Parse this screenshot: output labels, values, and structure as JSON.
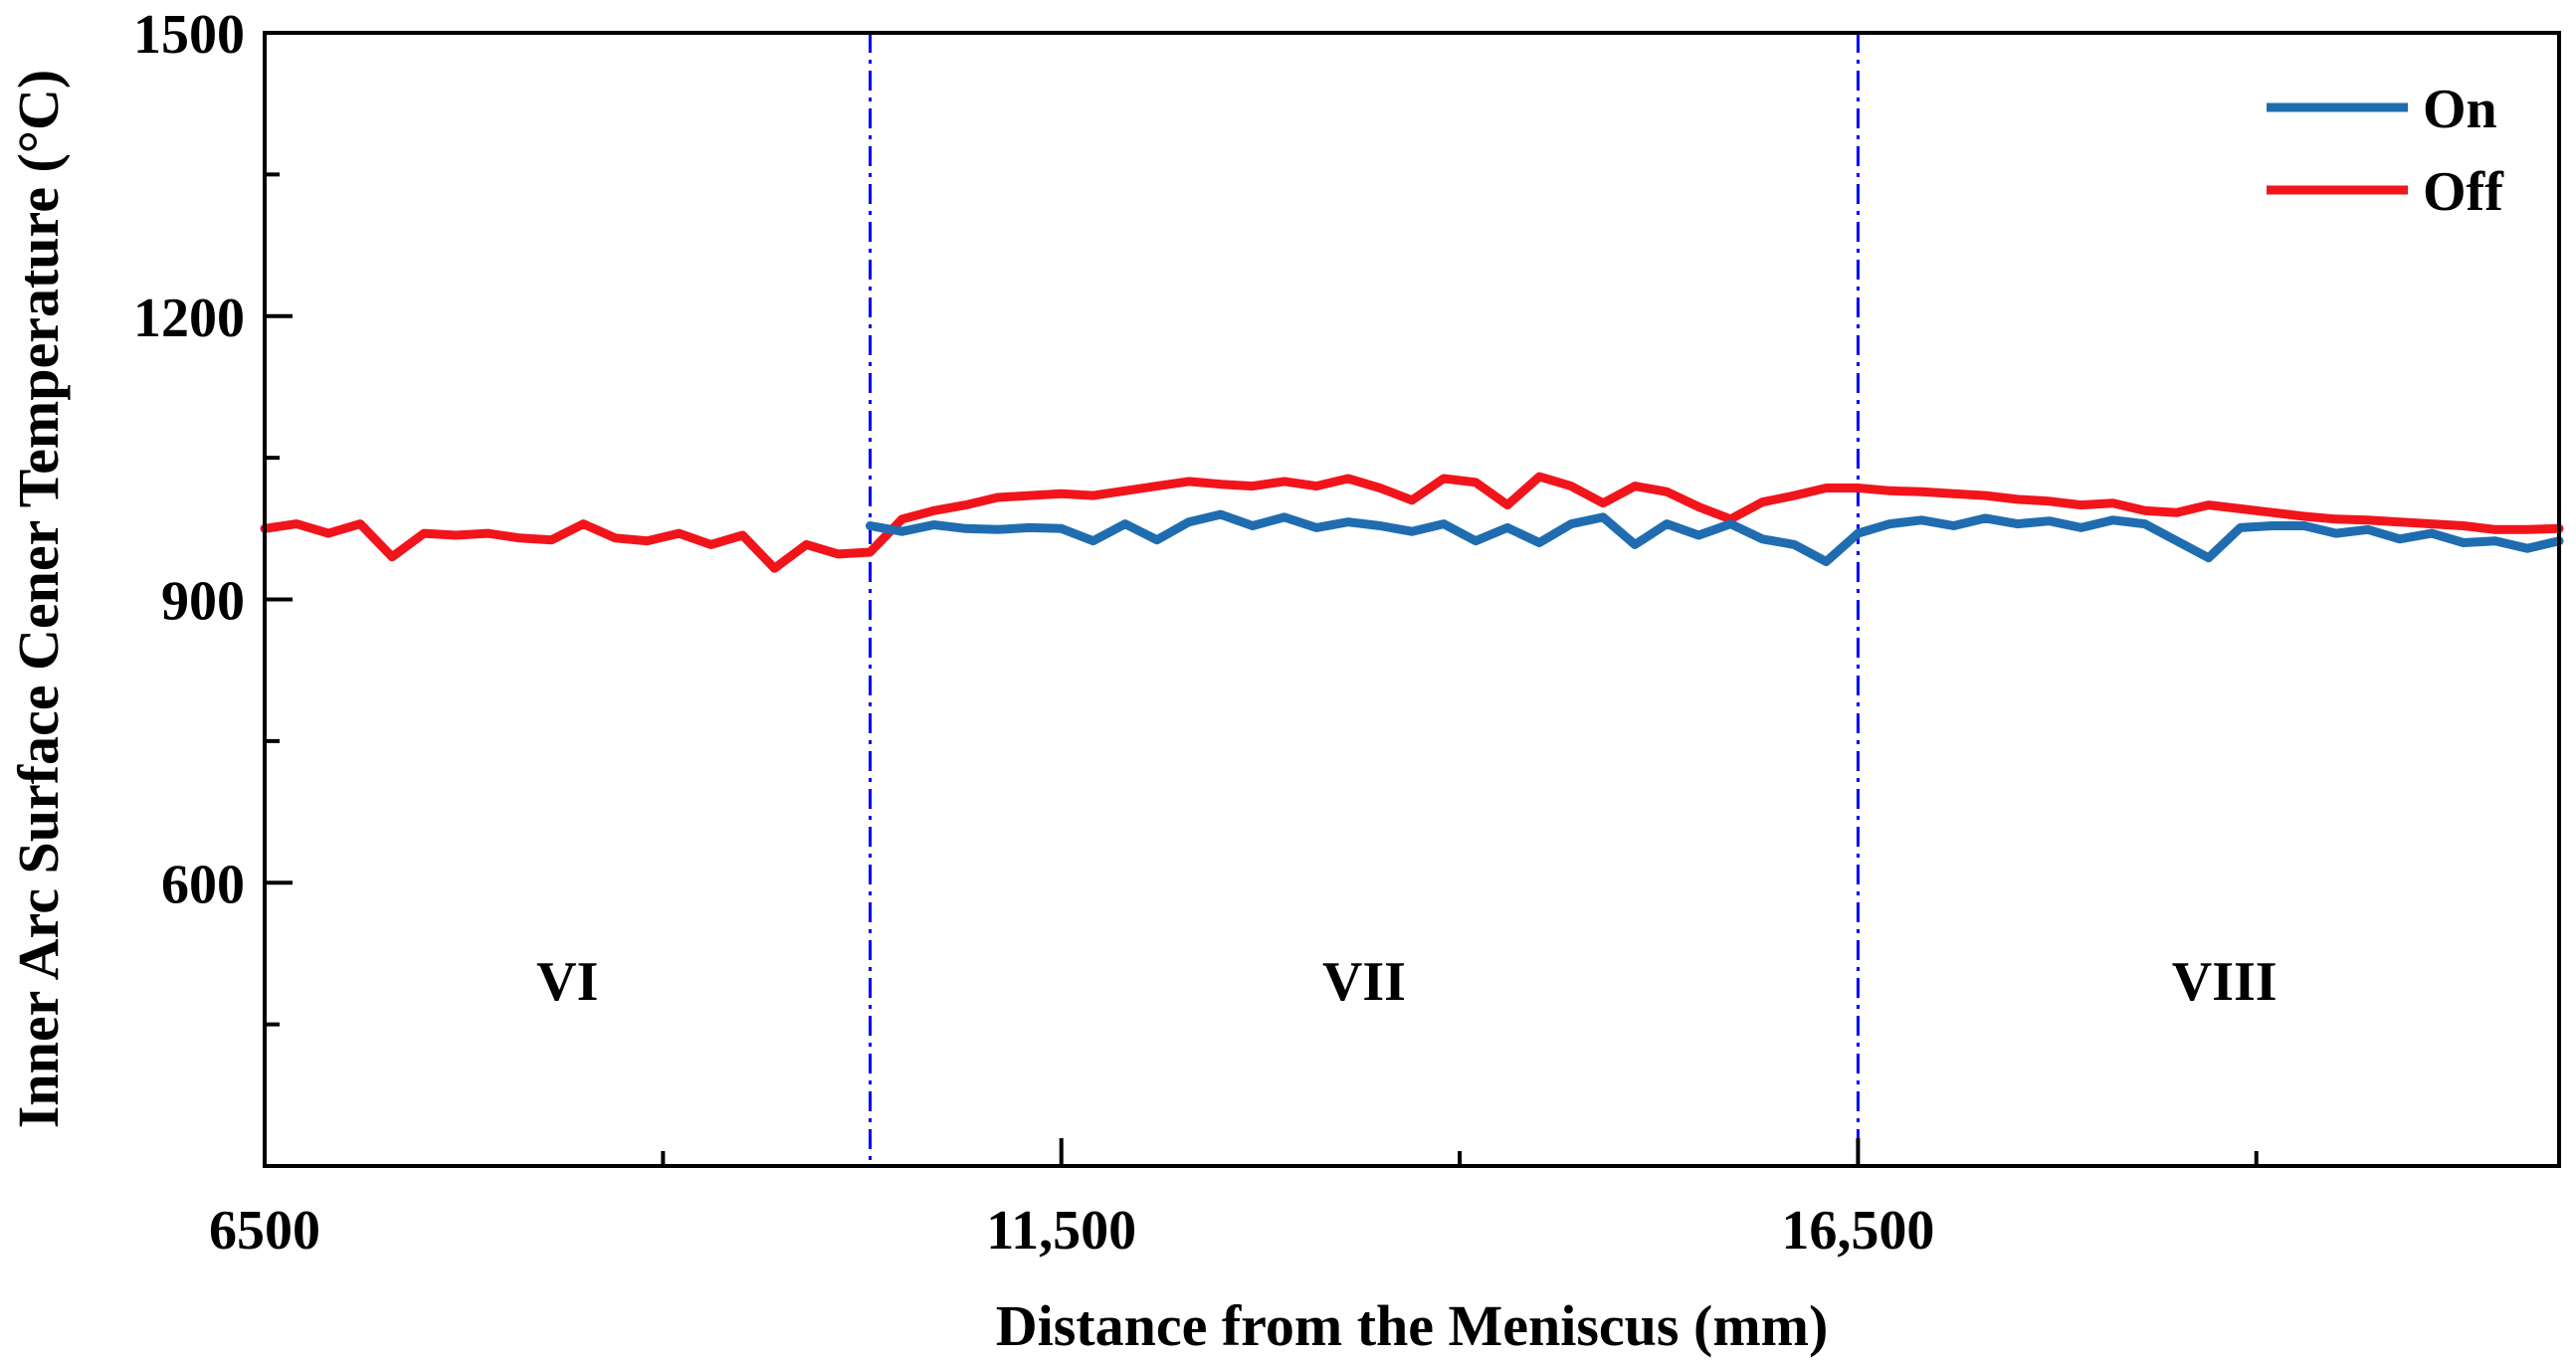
{
  "chart_data": {
    "type": "line",
    "title": "",
    "xlabel": "Distance from the Meniscus (mm)",
    "ylabel": "Inner Arc Surface Cener Temperature (°C)",
    "xlim": [
      6500,
      20900
    ],
    "ylim": [
      300,
      1500
    ],
    "x_ticks": [
      6500,
      11500,
      16500
    ],
    "x_tick_labels": [
      "6500",
      "11,500",
      "16,500"
    ],
    "x_minor_ticks": [
      9000,
      14000,
      19000
    ],
    "y_ticks": [
      600,
      900,
      1200,
      1500
    ],
    "y_tick_labels": [
      "600",
      "900",
      "1200",
      "1500"
    ],
    "y_minor_ticks": [
      450,
      750,
      1050,
      1350
    ],
    "legend_position": "top-right",
    "zone_boundaries": [
      10300,
      16500
    ],
    "zones": [
      {
        "label": "VI",
        "x": 8400
      },
      {
        "label": "VII",
        "x": 13400
      },
      {
        "label": "VIII",
        "x": 18800
      }
    ],
    "series": [
      {
        "name": "On",
        "color": "#1f6db0",
        "x": [
          10300,
          10500,
          10700,
          10900,
          11100,
          11300,
          11500,
          11700,
          11900,
          12100,
          12300,
          12500,
          12700,
          12900,
          13100,
          13300,
          13500,
          13700,
          13900,
          14100,
          14300,
          14500,
          14700,
          14900,
          15100,
          15300,
          15500,
          15700,
          15900,
          16100,
          16300,
          16500,
          16700,
          16900,
          17100,
          17300,
          17500,
          17700,
          17900,
          18100,
          18300,
          18500,
          18700,
          18900,
          19100,
          19300,
          19500,
          19700,
          19900,
          20100,
          20300,
          20500,
          20700,
          20900
        ],
        "y": [
          978,
          972,
          979,
          975,
          974,
          976,
          975,
          962,
          980,
          963,
          982,
          990,
          978,
          987,
          976,
          982,
          978,
          972,
          980,
          962,
          976,
          960,
          980,
          987,
          958,
          980,
          968,
          980,
          964,
          958,
          940,
          970,
          980,
          984,
          978,
          986,
          980,
          983,
          976,
          984,
          980,
          962,
          944,
          976,
          978,
          978,
          970,
          974,
          964,
          970,
          960,
          962,
          954,
          962
        ]
      },
      {
        "name": "Off",
        "color": "#f2141b",
        "x": [
          6500,
          6700,
          6900,
          7100,
          7300,
          7500,
          7700,
          7900,
          8100,
          8300,
          8500,
          8700,
          8900,
          9100,
          9300,
          9500,
          9700,
          9900,
          10100,
          10300,
          10500,
          10700,
          10900,
          11100,
          11300,
          11500,
          11700,
          11900,
          12100,
          12300,
          12500,
          12700,
          12900,
          13100,
          13300,
          13500,
          13700,
          13900,
          14100,
          14300,
          14500,
          14700,
          14900,
          15100,
          15300,
          15500,
          15700,
          15900,
          16100,
          16300,
          16500,
          16700,
          16900,
          17100,
          17300,
          17500,
          17700,
          17900,
          18100,
          18300,
          18500,
          18700,
          18900,
          19100,
          19300,
          19500,
          19700,
          19900,
          20100,
          20300,
          20500,
          20700,
          20900
        ],
        "y": [
          975,
          980,
          970,
          980,
          945,
          970,
          968,
          970,
          965,
          963,
          980,
          965,
          962,
          970,
          958,
          968,
          933,
          958,
          948,
          950,
          985,
          994,
          1000,
          1008,
          1010,
          1012,
          1010,
          1015,
          1020,
          1025,
          1022,
          1020,
          1025,
          1020,
          1028,
          1018,
          1005,
          1028,
          1024,
          1000,
          1030,
          1020,
          1002,
          1020,
          1014,
          998,
          985,
          1003,
          1010,
          1018,
          1018,
          1015,
          1014,
          1012,
          1010,
          1006,
          1004,
          1000,
          1002,
          994,
          992,
          1000,
          996,
          992,
          988,
          985,
          984,
          982,
          980,
          978,
          974,
          974,
          975
        ]
      }
    ]
  }
}
